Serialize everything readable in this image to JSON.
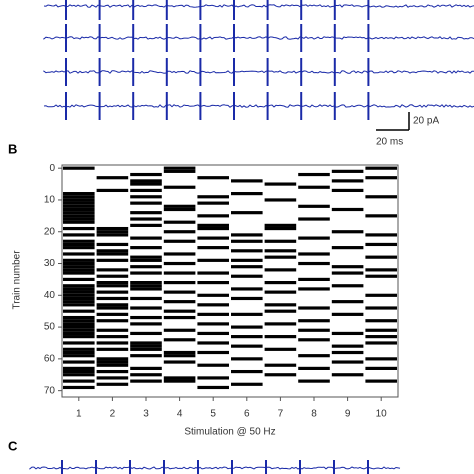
{
  "panels": {
    "b": "B",
    "c": "C"
  },
  "scale_bars": {
    "current": "20 pA",
    "time": "20 ms"
  },
  "chart_data": {
    "type": "raster",
    "x_label": "Stimulation @ 50 Hz",
    "y_label": "Train number",
    "x": [
      1,
      2,
      3,
      4,
      5,
      6,
      7,
      8,
      9,
      10
    ],
    "events": [
      [
        0,
        8,
        9,
        10,
        11,
        12,
        13,
        14,
        15,
        16,
        17,
        19,
        21,
        23,
        24,
        25,
        27,
        29,
        30,
        31,
        32,
        33,
        35,
        37,
        38,
        39,
        40,
        41,
        42,
        43,
        45,
        47,
        48,
        49,
        50,
        51,
        52,
        53,
        55,
        57,
        58,
        59,
        61,
        63,
        64,
        65,
        67,
        69
      ],
      [
        3,
        7,
        19,
        20,
        21,
        24,
        26,
        27,
        29,
        32,
        34,
        36,
        37,
        39,
        41,
        43,
        44,
        46,
        48,
        51,
        53,
        55,
        57,
        60,
        61,
        62,
        64,
        66,
        68
      ],
      [
        2,
        4,
        5,
        7,
        9,
        11,
        14,
        16,
        18,
        22,
        25,
        28,
        29,
        31,
        33,
        36,
        37,
        38,
        41,
        44,
        47,
        49,
        52,
        55,
        56,
        57,
        59,
        63,
        65,
        67
      ],
      [
        0,
        1,
        6,
        12,
        13,
        17,
        20,
        23,
        27,
        30,
        33,
        36,
        39,
        42,
        45,
        47,
        51,
        54,
        58,
        59,
        61,
        66,
        67
      ],
      [
        3,
        9,
        11,
        15,
        18,
        19,
        22,
        25,
        29,
        33,
        36,
        40,
        43,
        46,
        49,
        52,
        55,
        58,
        62,
        66,
        69
      ],
      [
        4,
        8,
        14,
        21,
        23,
        26,
        29,
        31,
        34,
        38,
        41,
        46,
        50,
        53,
        56,
        60,
        64,
        68
      ],
      [
        5,
        10,
        18,
        19,
        23,
        26,
        28,
        32,
        36,
        39,
        43,
        45,
        49,
        53,
        57,
        62,
        65
      ],
      [
        2,
        6,
        12,
        16,
        22,
        27,
        30,
        35,
        38,
        44,
        48,
        51,
        54,
        59,
        63,
        67
      ],
      [
        1,
        4,
        7,
        13,
        20,
        25,
        31,
        33,
        37,
        42,
        46,
        52,
        56,
        58,
        61,
        65
      ],
      [
        0,
        3,
        9,
        15,
        21,
        24,
        28,
        32,
        34,
        40,
        44,
        48,
        51,
        53,
        55,
        60,
        63,
        67
      ]
    ],
    "color": "#000000",
    "xlim": [
      0.5,
      10.5
    ],
    "ylim": [
      72,
      -1
    ],
    "xticks": [
      1,
      2,
      3,
      4,
      5,
      6,
      7,
      8,
      9,
      10
    ],
    "yticks": [
      0,
      10,
      20,
      30,
      40,
      50,
      60,
      70
    ]
  }
}
